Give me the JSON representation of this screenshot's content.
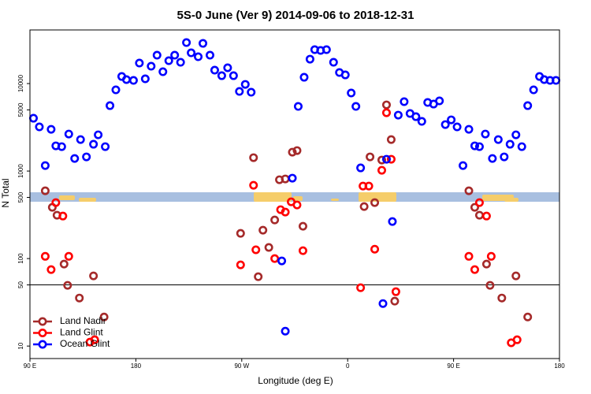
{
  "chart_data": {
    "type": "scatter",
    "title": "5S-0 June (Ver 9)   2014-09-06 to 2018-12-31",
    "xlabel": "Longitude (deg E)",
    "ylabel": "N Total",
    "xlim": [
      90,
      540
    ],
    "xticks": [
      {
        "value": 90,
        "label": "90 E"
      },
      {
        "value": 180,
        "label": "180"
      },
      {
        "value": 270,
        "label": "90 W"
      },
      {
        "value": 360,
        "label": "0"
      },
      {
        "value": 450,
        "label": "90 E"
      },
      {
        "value": 540,
        "label": "180"
      }
    ],
    "ylim": [
      7.2,
      41000
    ],
    "log_y": true,
    "yticks": [
      10,
      50,
      100,
      500,
      1000,
      5000,
      10000
    ],
    "reference_line": 50,
    "legend": "bottom-left",
    "series": [
      {
        "name": "Land Nadir",
        "color": "#a52a2a",
        "x": [
          103,
          109,
          113,
          119,
          122,
          132,
          144,
          153,
          280,
          269,
          284,
          288,
          293,
          298,
          302,
          307,
          313,
          317,
          322,
          374,
          379,
          383,
          389,
          393,
          397,
          400,
          463,
          468,
          472,
          478,
          481,
          491,
          503,
          513
        ],
        "values": [
          595,
          385,
          313,
          86.5,
          49.4,
          35.4,
          63.4,
          21.5,
          1423,
          194,
          62,
          211,
          134,
          276,
          796,
          813,
          1645,
          1715,
          234,
          393,
          1453,
          436,
          1337,
          5710,
          2291,
          32.6,
          595,
          385,
          313,
          86.5,
          49.4,
          35.4,
          63.4,
          21.5
        ]
      },
      {
        "name": "Land Glint",
        "color": "#ff0000",
        "x": [
          103,
          108,
          112,
          118,
          123,
          141,
          145,
          269,
          280,
          282,
          298,
          303,
          307,
          312,
          317,
          322,
          371,
          373,
          378,
          383,
          389,
          393,
          397,
          401,
          463,
          468,
          472,
          478,
          482,
          499,
          504
        ],
        "values": [
          106,
          74.8,
          436,
          306,
          106,
          11.1,
          11.8,
          84.7,
          688,
          126,
          100,
          362,
          340,
          445,
          410,
          123,
          46.4,
          674,
          674,
          128,
          1021,
          4640,
          1365,
          41.8,
          106,
          74.8,
          436,
          306,
          106,
          10.9,
          11.8
        ]
      },
      {
        "name": "Ocean Glint",
        "color": "#0000ff",
        "x": [
          93,
          98,
          103,
          108,
          112,
          117,
          123,
          128,
          133,
          138,
          144,
          148,
          154,
          158,
          163,
          168,
          172,
          178,
          183,
          188,
          193,
          198,
          203,
          208,
          213,
          218,
          223,
          227,
          233,
          237,
          243,
          247,
          253,
          258,
          263,
          268,
          273,
          278,
          313,
          318,
          323,
          328,
          332,
          337,
          342,
          348,
          353,
          358,
          363,
          367,
          371,
          393,
          398,
          390,
          403,
          408,
          413,
          418,
          423,
          428,
          433,
          438,
          443,
          448,
          453,
          458,
          463,
          468,
          472,
          477,
          483,
          488,
          493,
          498,
          503,
          508,
          513,
          518,
          523,
          527,
          532,
          537,
          304,
          307
        ],
        "values": [
          4015,
          3197,
          1156,
          3000,
          1942,
          1902,
          2650,
          1393,
          2291,
          1453,
          2025,
          2596,
          1902,
          5594,
          8472,
          12050,
          11100,
          10870,
          17150,
          11330,
          15790,
          21100,
          13650,
          18250,
          21100,
          17510,
          29400,
          22450,
          20250,
          28790,
          21100,
          14230,
          12300,
          15150,
          12300,
          8130,
          9790,
          7960,
          830,
          5480,
          11800,
          19010,
          24400,
          23900,
          24400,
          17510,
          13370,
          12560,
          7800,
          5480,
          1087,
          1365,
          265,
          30.6,
          4360,
          6210,
          4550,
          4185,
          3697,
          6080,
          5830,
          6340,
          3400,
          3850,
          3197,
          1156,
          3000,
          1942,
          1902,
          2650,
          1393,
          2291,
          1453,
          2025,
          2596,
          1902,
          5594,
          8472,
          12050,
          11100,
          10870,
          10870,
          94,
          14.8
        ]
      }
    ]
  }
}
